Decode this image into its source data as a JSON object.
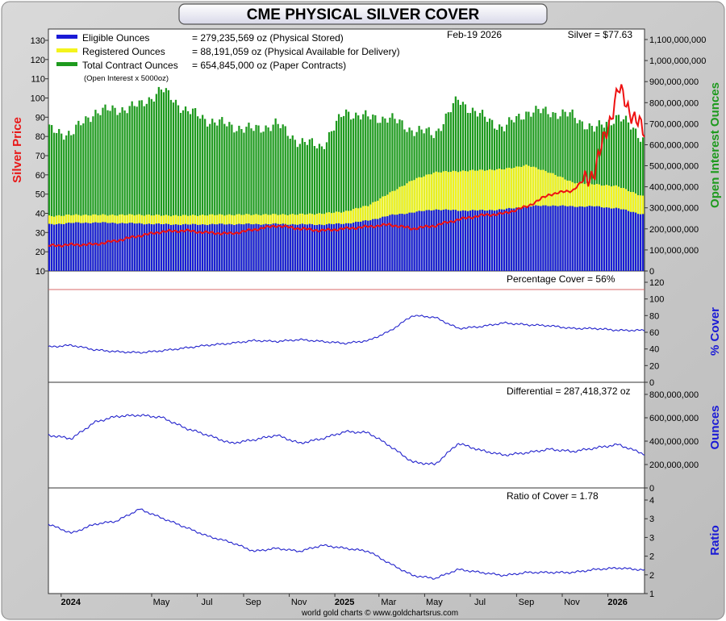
{
  "title": "CME PHYSICAL SILVER COVER",
  "date_label": "Feb-19  2026",
  "price_label": "Silver = $77.63",
  "footer": "world gold charts © www.goldchartsrus.com",
  "legend": {
    "eligible_name": "Eligible Ounces",
    "eligible_value": "= 279,235,569 oz (Physical Stored)",
    "registered_name": "Registered Ounces",
    "registered_value": "= 88,191,059 oz (Physical Available for Delivery)",
    "total_name": "Total Contract Ounces",
    "total_value": "= 654,845,000 oz (Paper Contracts)",
    "oi_note": "(Open Interest x 5000oz)"
  },
  "colors": {
    "eligible": "#1a1ad6",
    "registered": "#f4f41c",
    "total": "#1e9a1e",
    "price": "#ee1111",
    "line": "#2222cc",
    "axis_left": "#e81818",
    "axis_right_top": "#1e9a1e",
    "axis_right_lower": "#1a1ad6",
    "reference_line": "#d96a6a"
  },
  "chart_data": [
    {
      "type": "bar",
      "panel": "main",
      "ylabel_left": "Silver Price",
      "ylabel_right": "Open Interest Ounces",
      "y_left_range": [
        10,
        130
      ],
      "y_left_ticks": [
        "130",
        "120",
        "110",
        "100",
        "90",
        "80",
        "70",
        "60",
        "50",
        "40",
        "30",
        "20",
        "10"
      ],
      "y_right_range": [
        0,
        1200000000
      ],
      "y_right_ticks": [
        "1,100,000,000",
        "1,000,000,000",
        "900,000,000",
        "800,000,000",
        "700,000,000",
        "600,000,000",
        "500,000,000",
        "400,000,000",
        "300,000,000",
        "200,000,000",
        "100,000,000",
        "0"
      ],
      "x_range": [
        "2023-12-15",
        "2026-02-19"
      ],
      "x": [
        "2023-12-15",
        "2024-01-15",
        "2024-02-15",
        "2024-03-15",
        "2024-04-15",
        "2024-05-15",
        "2024-06-15",
        "2024-07-15",
        "2024-08-15",
        "2024-09-15",
        "2024-10-15",
        "2024-11-15",
        "2024-12-15",
        "2025-01-15",
        "2025-02-15",
        "2025-03-15",
        "2025-04-15",
        "2025-05-15",
        "2025-06-15",
        "2025-07-15",
        "2025-08-15",
        "2025-09-15",
        "2025-10-15",
        "2025-11-15",
        "2025-12-15",
        "2026-01-15",
        "2026-02-19"
      ],
      "series": [
        {
          "name": "Eligible Ounces",
          "values": [
            230000000,
            238000000,
            240000000,
            238000000,
            235000000,
            232000000,
            230000000,
            231000000,
            232000000,
            232000000,
            233000000,
            231000000,
            230000000,
            235000000,
            250000000,
            275000000,
            290000000,
            305000000,
            300000000,
            300000000,
            305000000,
            320000000,
            325000000,
            320000000,
            320000000,
            310000000,
            279235569
          ]
        },
        {
          "name": "Registered Ounces",
          "values": [
            42000000,
            40000000,
            38000000,
            40000000,
            44000000,
            44000000,
            45000000,
            47000000,
            47000000,
            48000000,
            47000000,
            50000000,
            55000000,
            60000000,
            75000000,
            110000000,
            160000000,
            185000000,
            195000000,
            200000000,
            200000000,
            205000000,
            165000000,
            120000000,
            110000000,
            110000000,
            88191059
          ]
        },
        {
          "name": "Total Contract Ounces",
          "values": [
            700000000,
            680000000,
            790000000,
            800000000,
            820000000,
            900000000,
            800000000,
            750000000,
            720000000,
            700000000,
            730000000,
            640000000,
            620000000,
            790000000,
            760000000,
            760000000,
            700000000,
            680000000,
            850000000,
            770000000,
            710000000,
            790000000,
            790000000,
            770000000,
            700000000,
            770000000,
            654845000
          ]
        }
      ],
      "price_series": {
        "name": "Silver Price",
        "values": [
          22.5,
          23.0,
          23.2,
          25.0,
          27.5,
          29.5,
          30.0,
          29.0,
          28.5,
          30.5,
          32.5,
          31.0,
          30.0,
          31.0,
          32.0,
          33.0,
          31.0,
          32.5,
          35.5,
          37.5,
          38.5,
          42.0,
          48.0,
          50.0,
          60.0,
          100.0,
          77.63
        ]
      }
    },
    {
      "type": "line",
      "panel": "percentage-cover",
      "title": "Percentage Cover = 56%",
      "ylabel": "% Cover",
      "ylim": [
        0,
        120
      ],
      "y_ticks": [
        "120",
        "100",
        "80",
        "60",
        "40",
        "20",
        "0"
      ],
      "reference_value": 100,
      "x": [
        "2023-12-15",
        "2024-01-15",
        "2024-02-15",
        "2024-03-15",
        "2024-04-15",
        "2024-05-15",
        "2024-06-15",
        "2024-07-15",
        "2024-08-15",
        "2024-09-15",
        "2024-10-15",
        "2024-11-15",
        "2024-12-15",
        "2025-01-15",
        "2025-02-15",
        "2025-03-15",
        "2025-04-15",
        "2025-05-15",
        "2025-06-15",
        "2025-07-15",
        "2025-08-15",
        "2025-09-15",
        "2025-10-15",
        "2025-11-15",
        "2025-12-15",
        "2026-01-15",
        "2026-02-19"
      ],
      "values": [
        38,
        40,
        35,
        33,
        32,
        34,
        37,
        40,
        42,
        45,
        44,
        46,
        44,
        42,
        45,
        55,
        72,
        70,
        58,
        60,
        64,
        62,
        61,
        58,
        58,
        56,
        56
      ]
    },
    {
      "type": "line",
      "panel": "differential",
      "title": "Differential = 287,418,372 oz",
      "ylabel": "Ounces",
      "ylim": [
        0,
        900000000
      ],
      "y_ticks": [
        "800,000,000",
        "600,000,000",
        "400,000,000",
        "200,000,000",
        "0"
      ],
      "x": [
        "2023-12-15",
        "2024-01-15",
        "2024-02-15",
        "2024-03-15",
        "2024-04-15",
        "2024-05-15",
        "2024-06-15",
        "2024-07-15",
        "2024-08-15",
        "2024-09-15",
        "2024-10-15",
        "2024-11-15",
        "2024-12-15",
        "2025-01-15",
        "2025-02-15",
        "2025-03-15",
        "2025-04-15",
        "2025-05-15",
        "2025-06-15",
        "2025-07-15",
        "2025-08-15",
        "2025-09-15",
        "2025-10-15",
        "2025-11-15",
        "2025-12-15",
        "2026-01-15",
        "2026-02-19"
      ],
      "values": [
        450000000,
        420000000,
        560000000,
        610000000,
        620000000,
        600000000,
        510000000,
        450000000,
        380000000,
        410000000,
        450000000,
        380000000,
        420000000,
        480000000,
        470000000,
        360000000,
        220000000,
        200000000,
        380000000,
        320000000,
        280000000,
        300000000,
        330000000,
        310000000,
        340000000,
        370000000,
        287418372
      ]
    },
    {
      "type": "line",
      "panel": "ratio-of-cover",
      "title": "Ratio of Cover = 1.78",
      "ylabel": "Ratio",
      "ylim": [
        1,
        4.5
      ],
      "y_ticks": [
        "4",
        "3",
        "3",
        "2",
        "2",
        "1"
      ],
      "x": [
        "2023-12-15",
        "2024-01-15",
        "2024-02-15",
        "2024-03-15",
        "2024-04-15",
        "2024-05-15",
        "2024-06-15",
        "2024-07-15",
        "2024-08-15",
        "2024-09-15",
        "2024-10-15",
        "2024-11-15",
        "2024-12-15",
        "2025-01-15",
        "2025-02-15",
        "2025-03-15",
        "2025-04-15",
        "2025-05-15",
        "2025-06-15",
        "2025-07-15",
        "2025-08-15",
        "2025-09-15",
        "2025-10-15",
        "2025-11-15",
        "2025-12-15",
        "2026-01-15",
        "2026-02-19"
      ],
      "values": [
        3.3,
        3.0,
        3.3,
        3.4,
        3.8,
        3.5,
        3.2,
        2.9,
        2.7,
        2.4,
        2.5,
        2.4,
        2.6,
        2.5,
        2.4,
        2.0,
        1.6,
        1.5,
        1.8,
        1.7,
        1.6,
        1.7,
        1.7,
        1.7,
        1.8,
        1.85,
        1.78
      ]
    }
  ],
  "x_axis_labels": [
    {
      "label": "2024",
      "date": "2024-01-01",
      "bold": true
    },
    {
      "label": "May",
      "date": "2024-05-01",
      "bold": false
    },
    {
      "label": "Jul",
      "date": "2024-07-01",
      "bold": false
    },
    {
      "label": "Sep",
      "date": "2024-09-01",
      "bold": false
    },
    {
      "label": "Nov",
      "date": "2024-11-01",
      "bold": false
    },
    {
      "label": "2025",
      "date": "2025-01-01",
      "bold": true
    },
    {
      "label": "Mar",
      "date": "2025-03-01",
      "bold": false
    },
    {
      "label": "May",
      "date": "2025-05-01",
      "bold": false
    },
    {
      "label": "Jul",
      "date": "2025-07-01",
      "bold": false
    },
    {
      "label": "Sep",
      "date": "2025-09-01",
      "bold": false
    },
    {
      "label": "Nov",
      "date": "2025-11-01",
      "bold": false
    },
    {
      "label": "2026",
      "date": "2026-01-01",
      "bold": true
    }
  ]
}
